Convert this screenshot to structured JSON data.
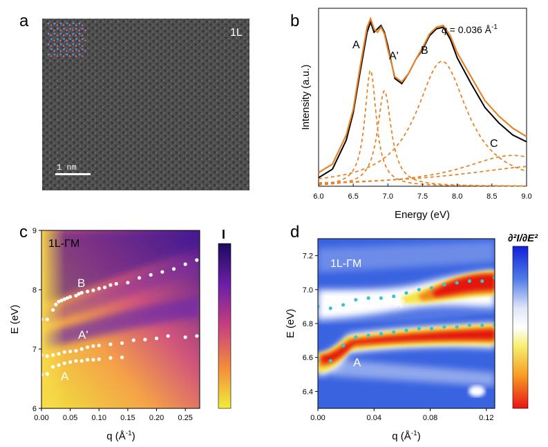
{
  "colors": {
    "orange": "#e6842a",
    "dark": "#000000",
    "dot_c": "#ffffff",
    "dot_d": "#39c5d0",
    "panel_a_bg": "#4a4a4a"
  },
  "panel_labels": [
    "a",
    "b",
    "c",
    "d"
  ],
  "chart_data": [
    {
      "panel": "a",
      "type": "image",
      "layer_label": "1L",
      "scale_bar_label": "1 nm"
    },
    {
      "panel": "b",
      "type": "line",
      "xlabel": "Energy (eV)",
      "ylabel": "Intensity (a.u.)",
      "xlim": [
        6.0,
        9.0
      ],
      "xticks": [
        "6.0",
        "6.5",
        "7.0",
        "7.5",
        "8.0",
        "8.5",
        "9.0"
      ],
      "annotation": {
        "q_symbol": "q",
        "q_value": " = 0.036 Å",
        "q_exp": "-1"
      },
      "peak_labels": [
        "A",
        "A'",
        "B",
        "C"
      ],
      "series": [
        {
          "name": "measured",
          "style": "solid-black",
          "x": [
            6.0,
            6.2,
            6.4,
            6.5,
            6.6,
            6.7,
            6.75,
            6.8,
            6.85,
            6.9,
            6.95,
            7.0,
            7.1,
            7.2,
            7.3,
            7.4,
            7.5,
            7.6,
            7.7,
            7.8,
            7.9,
            8.0,
            8.2,
            8.4,
            8.6,
            8.8,
            9.0
          ],
          "y": [
            0.05,
            0.1,
            0.27,
            0.43,
            0.67,
            0.9,
            0.96,
            0.9,
            0.92,
            0.94,
            0.9,
            0.82,
            0.63,
            0.6,
            0.66,
            0.74,
            0.8,
            0.88,
            0.92,
            0.93,
            0.86,
            0.75,
            0.6,
            0.46,
            0.37,
            0.3,
            0.26
          ]
        },
        {
          "name": "fit",
          "style": "solid-orange",
          "x": [
            6.0,
            6.2,
            6.4,
            6.5,
            6.6,
            6.7,
            6.75,
            6.8,
            6.85,
            6.9,
            6.95,
            7.0,
            7.1,
            7.2,
            7.3,
            7.4,
            7.5,
            7.6,
            7.7,
            7.8,
            7.9,
            8.0,
            8.2,
            8.4,
            8.6,
            8.8,
            9.0
          ],
          "y": [
            0.08,
            0.13,
            0.3,
            0.45,
            0.7,
            0.93,
            0.98,
            0.92,
            0.9,
            0.93,
            0.89,
            0.8,
            0.64,
            0.61,
            0.66,
            0.74,
            0.81,
            0.89,
            0.93,
            0.94,
            0.88,
            0.78,
            0.64,
            0.5,
            0.41,
            0.34,
            0.29
          ]
        },
        {
          "name": "peak A",
          "style": "dashed-orange",
          "center": 6.75,
          "height": 0.68,
          "width": 0.1
        },
        {
          "name": "peak A'",
          "style": "dashed-orange",
          "center": 6.95,
          "height": 0.56,
          "width": 0.12
        },
        {
          "name": "peak B",
          "style": "dashed-orange",
          "center": 7.78,
          "height": 0.73,
          "width": 0.45
        },
        {
          "name": "peak C",
          "style": "dashed-orange",
          "center": 8.8,
          "height": 0.18,
          "width": 0.9
        },
        {
          "name": "background",
          "style": "dashed-orange",
          "center": 9.3,
          "height": 0.12,
          "width": 1.5
        }
      ]
    },
    {
      "panel": "c",
      "type": "heatmap",
      "label": "1L-ΓM",
      "xlabel": "q (Å",
      "xlabel_exp": "-1",
      "xlabel_end": ")",
      "ylabel": "E (eV)",
      "xlim": [
        0.0,
        0.275
      ],
      "ylim": [
        6.0,
        9.0
      ],
      "xticks": [
        "0.00",
        "0.05",
        "0.10",
        "0.15",
        "0.20",
        "0.25"
      ],
      "yticks": [
        "6",
        "7",
        "8",
        "9"
      ],
      "colorbar_label": "I",
      "band_labels": [
        "B",
        "A'",
        "A"
      ],
      "series": [
        {
          "name": "B",
          "q": [
            0.0,
            0.01,
            0.02,
            0.025,
            0.03,
            0.035,
            0.04,
            0.045,
            0.05,
            0.06,
            0.065,
            0.07,
            0.08,
            0.09,
            0.1,
            0.11,
            0.12,
            0.13,
            0.15,
            0.17,
            0.19,
            0.21,
            0.23,
            0.25,
            0.27
          ],
          "E": [
            7.5,
            7.5,
            7.66,
            7.75,
            7.8,
            7.82,
            7.84,
            7.86,
            7.88,
            7.9,
            7.93,
            7.95,
            7.97,
            7.99,
            8.02,
            8.04,
            8.08,
            8.1,
            8.12,
            8.2,
            8.25,
            8.3,
            8.35,
            8.43,
            8.5
          ]
        },
        {
          "name": "A'",
          "q": [
            0.0,
            0.01,
            0.02,
            0.03,
            0.04,
            0.05,
            0.06,
            0.07,
            0.08,
            0.09,
            0.1,
            0.12,
            0.14,
            0.16,
            0.18,
            0.2,
            0.22,
            0.25,
            0.27
          ],
          "E": [
            6.9,
            6.88,
            6.9,
            6.92,
            6.95,
            6.96,
            6.97,
            7.0,
            7.03,
            7.05,
            7.06,
            7.08,
            7.1,
            7.15,
            7.16,
            7.18,
            7.22,
            7.2,
            7.22
          ]
        },
        {
          "name": "A",
          "q": [
            0.0,
            0.01,
            0.02,
            0.03,
            0.04,
            0.05,
            0.06,
            0.07,
            0.08,
            0.09,
            0.1,
            0.12,
            0.14
          ],
          "E": [
            6.57,
            6.58,
            6.7,
            6.73,
            6.76,
            6.78,
            6.8,
            6.8,
            6.82,
            6.82,
            6.83,
            6.85,
            6.86
          ]
        }
      ]
    },
    {
      "panel": "d",
      "type": "heatmap",
      "label": "1L-ΓM",
      "xlabel": "q (Å",
      "xlabel_exp": "-1",
      "xlabel_end": ")",
      "ylabel": "E (eV)",
      "xlim": [
        0.0,
        0.126
      ],
      "ylim": [
        6.3,
        7.3
      ],
      "xticks": [
        "0.00",
        "0.04",
        "0.08",
        "0.12"
      ],
      "yticks": [
        "6.4",
        "6.6",
        "6.8",
        "7.0",
        "7.2"
      ],
      "colorbar_label": "∂²I/∂E²",
      "band_labels": [
        "A'",
        "A"
      ],
      "series": [
        {
          "name": "A'",
          "q": [
            0.0,
            0.009,
            0.018,
            0.027,
            0.036,
            0.045,
            0.054,
            0.063,
            0.072,
            0.081,
            0.09,
            0.099,
            0.108,
            0.117,
            0.126
          ],
          "E": [
            6.9,
            6.89,
            6.91,
            6.94,
            6.95,
            6.95,
            6.96,
            6.98,
            7.0,
            7.01,
            7.03,
            7.04,
            7.05,
            7.05,
            7.07
          ]
        },
        {
          "name": "A",
          "q": [
            0.0,
            0.009,
            0.018,
            0.027,
            0.036,
            0.045,
            0.054,
            0.063,
            0.072,
            0.081,
            0.09,
            0.099,
            0.108,
            0.117,
            0.126
          ],
          "E": [
            6.58,
            6.58,
            6.67,
            6.72,
            6.73,
            6.74,
            6.75,
            6.76,
            6.77,
            6.77,
            6.78,
            6.78,
            6.79,
            6.79,
            6.79
          ]
        }
      ]
    }
  ]
}
